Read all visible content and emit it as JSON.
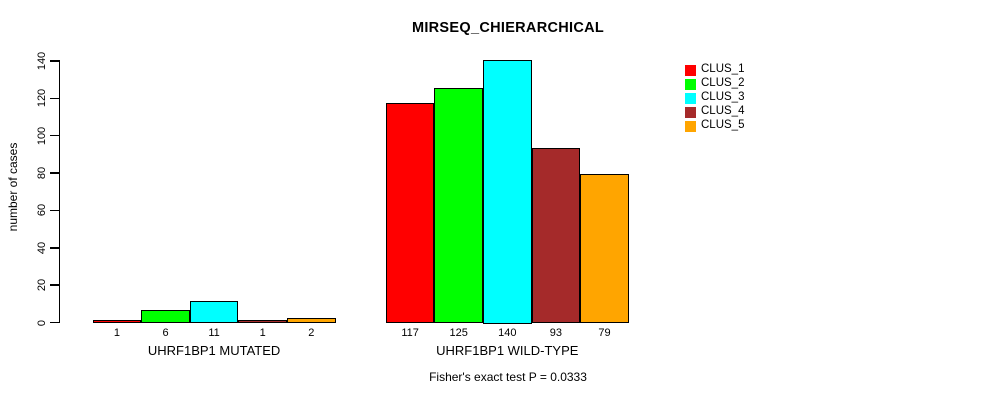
{
  "title": "MIRSEQ_CHIERARCHICAL",
  "caption": "Fisher's exact test P = 0.0333",
  "y_axis": {
    "label": "number of cases",
    "ticks": [
      0,
      20,
      40,
      60,
      80,
      100,
      120,
      140
    ]
  },
  "legend": {
    "items": [
      {
        "label": "CLUS_1",
        "color": "#FF0000"
      },
      {
        "label": "CLUS_2",
        "color": "#00FF00"
      },
      {
        "label": "CLUS_3",
        "color": "#00FFFF"
      },
      {
        "label": "CLUS_4",
        "color": "#A52A2A"
      },
      {
        "label": "CLUS_5",
        "color": "#FFA500"
      }
    ]
  },
  "chart_data": {
    "type": "bar",
    "title": "MIRSEQ_CHIERARCHICAL",
    "xlabel": "",
    "ylabel": "number of cases",
    "ylim": [
      0,
      140
    ],
    "yticks": [
      0,
      20,
      40,
      60,
      80,
      100,
      120,
      140
    ],
    "categories": [
      "UHRF1BP1 MUTATED",
      "UHRF1BP1 WILD-TYPE"
    ],
    "series": [
      {
        "name": "CLUS_1",
        "color": "#FF0000",
        "values": [
          1,
          117
        ]
      },
      {
        "name": "CLUS_2",
        "color": "#00FF00",
        "values": [
          6,
          125
        ]
      },
      {
        "name": "CLUS_3",
        "color": "#00FFFF",
        "values": [
          11,
          140
        ]
      },
      {
        "name": "CLUS_4",
        "color": "#A52A2A",
        "values": [
          1,
          93
        ]
      },
      {
        "name": "CLUS_5",
        "color": "#FFA500",
        "values": [
          2,
          79
        ]
      }
    ],
    "bar_value_labels": [
      [
        1,
        6,
        11,
        1,
        2
      ],
      [
        117,
        125,
        140,
        93,
        79
      ]
    ],
    "annotation": "Fisher's exact test P = 0.0333",
    "legend_position": "right",
    "grid": false
  }
}
